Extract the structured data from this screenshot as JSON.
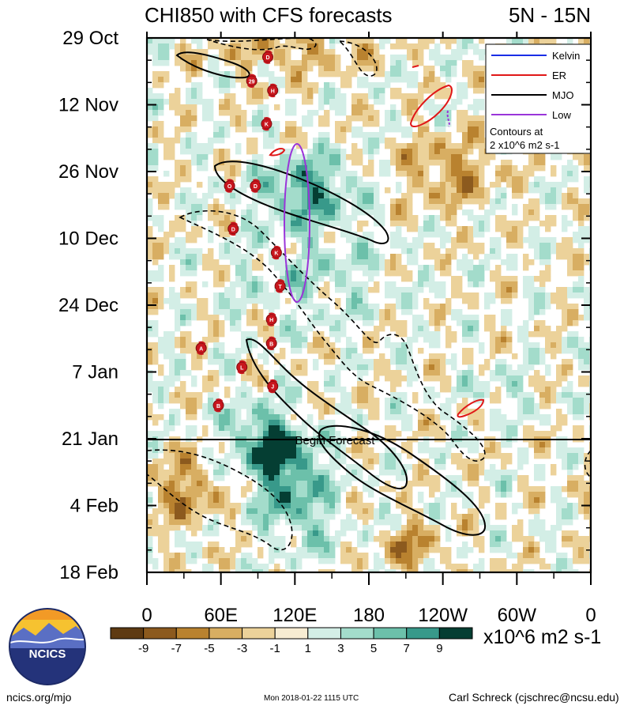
{
  "header": {
    "title": "CHI850 with CFS forecasts",
    "region": "5N - 15N"
  },
  "chart_data": {
    "type": "heatmap",
    "title": "CHI850 with CFS forecasts",
    "subtitle": "5N - 15N",
    "x_ticks": [
      "0",
      "60E",
      "120E",
      "180",
      "120W",
      "60W",
      "0"
    ],
    "x_tick_degrees": [
      0,
      60,
      120,
      180,
      240,
      300,
      360
    ],
    "y_ticks": [
      "29 Oct",
      "12 Nov",
      "26 Nov",
      "10 Dec",
      "24 Dec",
      "7 Jan",
      "21 Jan",
      "4 Feb",
      "18 Feb"
    ],
    "y_range": [
      "29 Oct",
      "18 Feb"
    ],
    "forecast_start": "21 Jan",
    "forecast_label": "Begin Forecast",
    "colorbar": {
      "labels": [
        "-9",
        "-7",
        "-5",
        "-3",
        "-1",
        "1",
        "3",
        "5",
        "7",
        "9"
      ],
      "colors": [
        "#5e3a12",
        "#8c5a1e",
        "#b9822f",
        "#d8ae62",
        "#ecd29a",
        "#f7ecd2",
        "#ffffff",
        "#d3eee6",
        "#a3dccb",
        "#6cc0aa",
        "#38998a",
        "#0d6d5e",
        "#053e33"
      ],
      "units": "x10^6 m2 s-1"
    },
    "legend": {
      "placement": "top-right",
      "entries": [
        {
          "name": "Kelvin",
          "color": "#1a2ee6"
        },
        {
          "name": "ER",
          "color": "#e01818"
        },
        {
          "name": "MJO",
          "color": "#000000"
        },
        {
          "name": "Low",
          "color": "#9a35d9"
        }
      ],
      "note_line1": "Contours at",
      "note_line2": "2 x10^6 m2 s-1"
    },
    "storms": [
      {
        "label": "D",
        "lon": 98,
        "date": "2 Nov"
      },
      {
        "label": "29",
        "lon": 85,
        "date": "7 Nov"
      },
      {
        "label": "H",
        "lon": 102,
        "date": "9 Nov"
      },
      {
        "label": "K",
        "lon": 97,
        "date": "16 Nov"
      },
      {
        "label": "O",
        "lon": 67,
        "date": "29 Nov"
      },
      {
        "label": "D",
        "lon": 88,
        "date": "29 Nov"
      },
      {
        "label": "D",
        "lon": 70,
        "date": "8 Dec"
      },
      {
        "label": "K",
        "lon": 105,
        "date": "13 Dec"
      },
      {
        "label": "T",
        "lon": 108,
        "date": "20 Dec"
      },
      {
        "label": "H",
        "lon": 101,
        "date": "27 Dec"
      },
      {
        "label": "B",
        "lon": 101,
        "date": "1 Jan"
      },
      {
        "label": "A",
        "lon": 44,
        "date": "2 Jan"
      },
      {
        "label": "L",
        "lon": 77,
        "date": "6 Jan"
      },
      {
        "label": "J",
        "lon": 102,
        "date": "10 Jan"
      },
      {
        "label": "B",
        "lon": 58,
        "date": "14 Jan"
      }
    ]
  },
  "footer": {
    "logo_text": "NCICS",
    "left": "ncics.org/mjo",
    "center": "Mon 2018-01-22 1115 UTC",
    "right": "Carl Schreck (cjschrec@ncsu.edu)"
  }
}
